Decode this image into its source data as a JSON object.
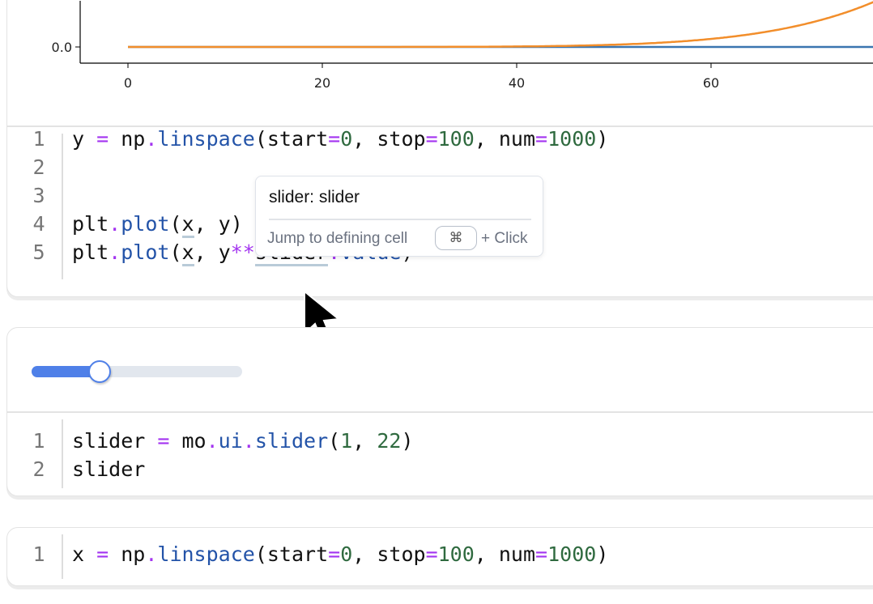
{
  "cells": [
    {
      "output": {
        "chart_data": {
          "type": "line",
          "xticks": [
            "0",
            "20",
            "40",
            "60"
          ],
          "yticks": [
            "0.0"
          ],
          "x_range": [
            0,
            100
          ],
          "series": [
            {
              "formula": "y",
              "color": "#3a75b0"
            },
            {
              "formula": "y**slider.value",
              "exponent": 7,
              "color": "#f28e2b"
            }
          ]
        }
      },
      "code": [
        "y = np.linspace(start=0, stop=100, num=1000)",
        "",
        "",
        "plt.plot(x, y)",
        "plt.plot(x, y**slider.value)"
      ]
    },
    {
      "output": {
        "slider": {
          "min": 1,
          "max": 22,
          "value": 7
        }
      },
      "code": [
        "slider = mo.ui.slider(1, 22)",
        "slider"
      ]
    },
    {
      "code": [
        "x = np.linspace(start=0, stop=100, num=1000)"
      ]
    }
  ],
  "line_numbers": [
    "1",
    "2",
    "3",
    "4",
    "5"
  ],
  "tooltip": {
    "title": "slider: slider",
    "hint": "Jump to defining cell",
    "key": "⌘",
    "suffix": "+ Click"
  }
}
